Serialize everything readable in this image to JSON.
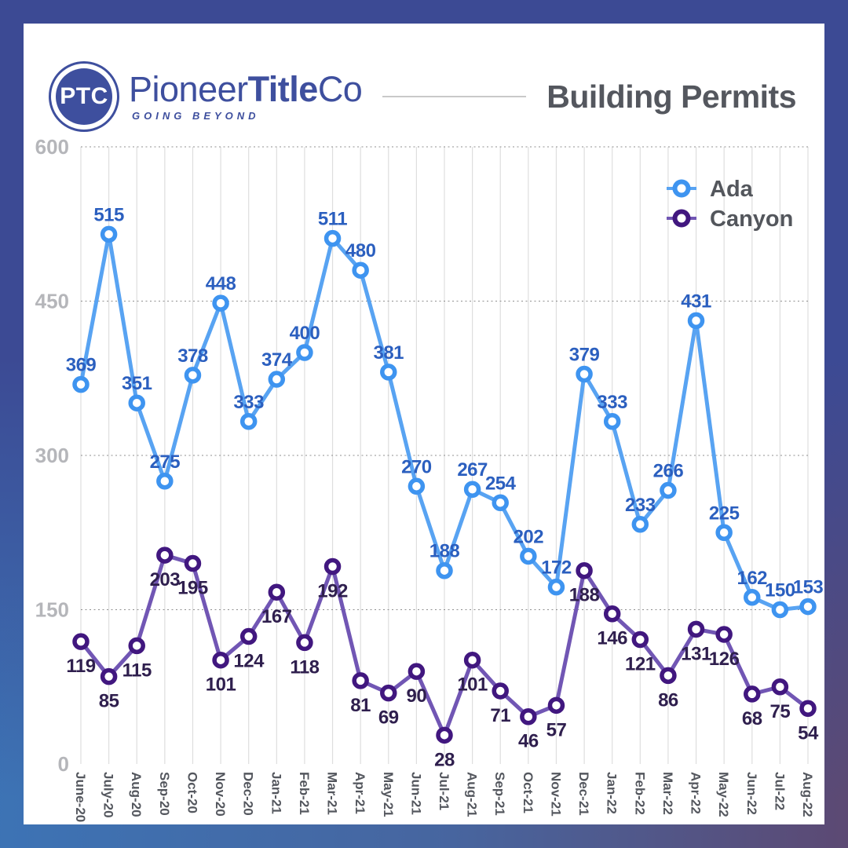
{
  "brand": {
    "logo_monogram": "PTC",
    "name_regular": "Pioneer",
    "name_bold": "Title",
    "name_suffix": "Co",
    "tagline": "GOING BEYOND",
    "brand_color": "#3E4F9E"
  },
  "header": {
    "title": "Building Permits"
  },
  "page_background": {
    "top": "#3C4A94",
    "bottom_left": "#3C74B6",
    "bottom_right": "#5C4973"
  },
  "chart_data": {
    "type": "line",
    "title": "Building Permits",
    "categories": [
      "June-20",
      "July-20",
      "Aug-20",
      "Sep-20",
      "Oct-20",
      "Nov-20",
      "Dec-20",
      "Jan-21",
      "Feb-21",
      "Mar-21",
      "Apr-21",
      "May-21",
      "Jun-21",
      "Jul-21",
      "Aug-21",
      "Sep-21",
      "Oct-21",
      "Nov-21",
      "Dec-21",
      "Jan-22",
      "Feb-22",
      "Mar-22",
      "Apr-22",
      "May-22",
      "Jun-22",
      "Jul-22",
      "Aug-22"
    ],
    "series": [
      {
        "name": "Ada",
        "values": [
          369,
          515,
          351,
          275,
          378,
          448,
          333,
          374,
          400,
          511,
          480,
          381,
          270,
          188,
          267,
          254,
          202,
          172,
          379,
          333,
          233,
          266,
          431,
          225,
          162,
          150,
          153
        ],
        "line_color": "#58A3F2",
        "marker_color": "#3E94F0",
        "label_color": "#2B5FBF",
        "label_position": "above"
      },
      {
        "name": "Canyon",
        "values": [
          119,
          85,
          115,
          203,
          195,
          101,
          124,
          167,
          118,
          192,
          81,
          69,
          90,
          28,
          101,
          71,
          46,
          57,
          188,
          146,
          121,
          86,
          131,
          126,
          68,
          75,
          54
        ],
        "line_color": "#7156B4",
        "marker_color": "#41177F",
        "label_color": "#2F1F4E",
        "label_position": "below"
      }
    ],
    "ylim": [
      0,
      600
    ],
    "yticks": [
      0,
      150,
      300,
      450,
      600
    ],
    "x_tick_rotation": 90,
    "grid": {
      "vertical": "solid",
      "horizontal": "dotted"
    },
    "legend": {
      "position": "top-right"
    }
  }
}
